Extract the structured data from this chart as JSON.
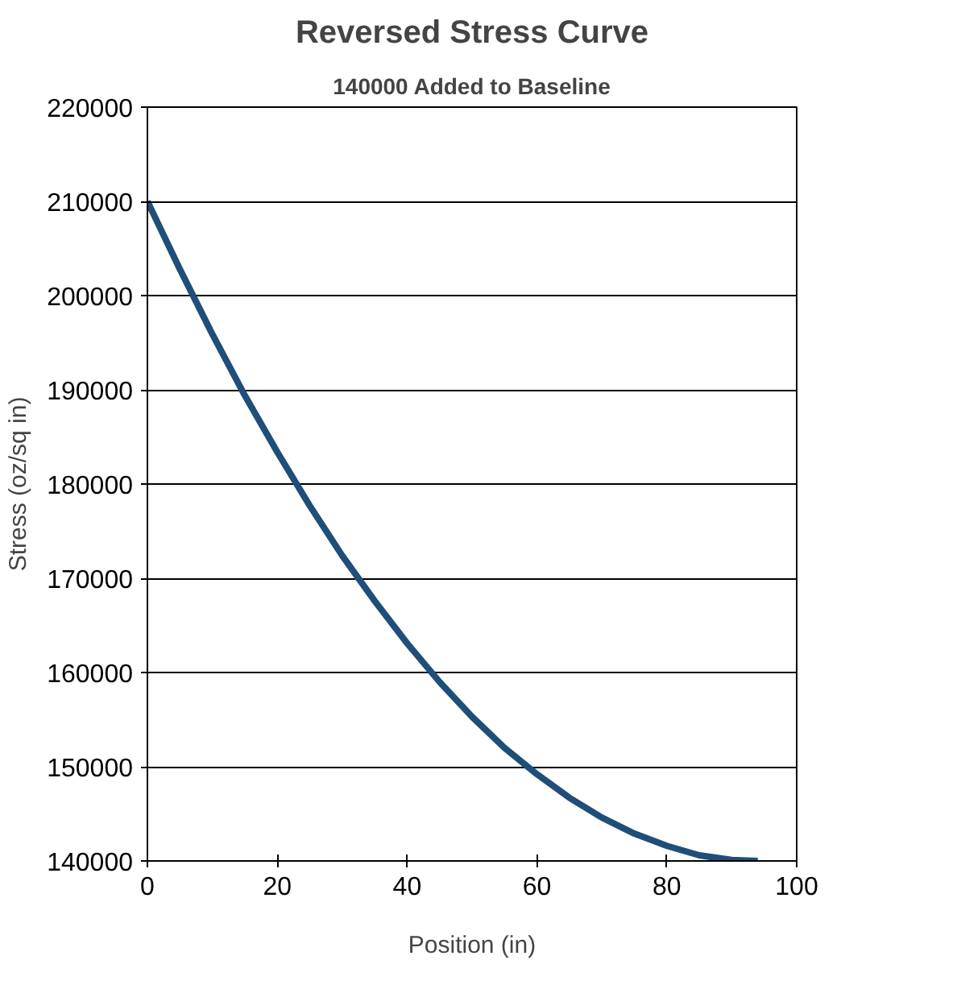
{
  "chart_data": {
    "type": "line",
    "title": "Reversed Stress Curve",
    "subtitle": "140000 Added to Baseline",
    "xlabel": "Position (in)",
    "ylabel": "Stress (oz/sq in)",
    "x": [
      0,
      5,
      10,
      15,
      20,
      25,
      30,
      35,
      40,
      45,
      50,
      55,
      60,
      65,
      70,
      75,
      80,
      85,
      90,
      94
    ],
    "series": [
      {
        "color": "#1f4e79",
        "values": [
          210000,
          202800,
          195900,
          189400,
          183400,
          177700,
          172400,
          167600,
          163100,
          159000,
          155300,
          152000,
          149200,
          146700,
          144600,
          142900,
          141600,
          140600,
          140100,
          140000
        ]
      }
    ],
    "xlim": [
      0,
      100
    ],
    "xticks": [
      0,
      20,
      40,
      60,
      80,
      100
    ],
    "ylim": [
      140000,
      220000
    ],
    "yticks": [
      140000,
      150000,
      160000,
      170000,
      180000,
      190000,
      200000,
      210000,
      220000
    ],
    "grid": "y",
    "marker": "none",
    "line_style": "solid"
  }
}
